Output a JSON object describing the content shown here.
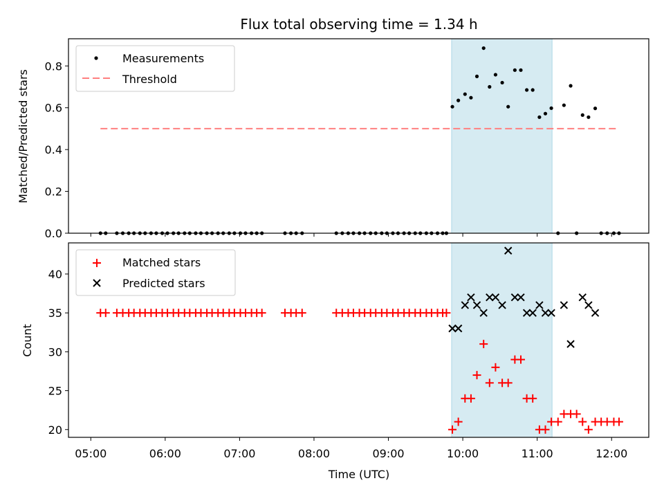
{
  "title": "Flux total observing time = 1.34 h",
  "xlabel": "Time (UTC)",
  "x_ticks": [
    "05:00",
    "06:00",
    "07:00",
    "08:00",
    "09:00",
    "10:00",
    "11:00",
    "12:00"
  ],
  "x_tick_values_h": [
    5,
    6,
    7,
    8,
    9,
    10,
    11,
    12
  ],
  "xlim_h": [
    4.7,
    12.5
  ],
  "colors": {
    "measurement": "#000000",
    "threshold": "#ff7f7f",
    "matched": "#ff0000",
    "predicted": "#000000",
    "span": "#add8e6"
  },
  "chart_data": [
    {
      "type": "scatter",
      "title": "Flux total observing time = 1.34 h",
      "xlabel": "",
      "ylabel": "Matched/Predicted stars",
      "ylim": [
        0.0,
        0.93
      ],
      "y_ticks": [
        0.0,
        0.2,
        0.4,
        0.6,
        0.8
      ],
      "y_tick_labels": [
        "0.0",
        "0.2",
        "0.4",
        "0.6",
        "0.8"
      ],
      "grid": false,
      "legend": "upper-left",
      "shaded_span_h": [
        9.85,
        11.2
      ],
      "threshold": {
        "name": "Threshold",
        "y": 0.5,
        "x_start_h": 5.13,
        "x_end_h": 12.07
      },
      "series": [
        {
          "name": "Measurements",
          "x_h": [
            5.13,
            5.2,
            5.35,
            5.43,
            5.51,
            5.58,
            5.66,
            5.73,
            5.81,
            5.88,
            5.96,
            6.03,
            6.11,
            6.18,
            6.26,
            6.33,
            6.41,
            6.48,
            6.56,
            6.63,
            6.71,
            6.78,
            6.86,
            6.93,
            7.01,
            7.08,
            7.16,
            7.23,
            7.3,
            7.61,
            7.69,
            7.76,
            7.84,
            8.3,
            8.38,
            8.46,
            8.53,
            8.61,
            8.68,
            8.76,
            8.83,
            8.91,
            8.98,
            9.06,
            9.13,
            9.21,
            9.28,
            9.36,
            9.43,
            9.51,
            9.58,
            9.66,
            9.73,
            9.78,
            9.86,
            9.94,
            10.03,
            10.11,
            10.19,
            10.28,
            10.36,
            10.44,
            10.53,
            10.61,
            10.7,
            10.78,
            10.86,
            10.94,
            11.03,
            11.11,
            11.19,
            11.28,
            11.36,
            11.45,
            11.53,
            11.61,
            11.69,
            11.78,
            11.86,
            11.94,
            12.03,
            12.1
          ],
          "y": [
            0,
            0,
            0,
            0,
            0,
            0,
            0,
            0,
            0,
            0,
            0,
            0,
            0,
            0,
            0,
            0,
            0,
            0,
            0,
            0,
            0,
            0,
            0,
            0,
            0,
            0,
            0,
            0,
            0,
            0,
            0,
            0,
            0,
            0,
            0,
            0,
            0,
            0,
            0,
            0,
            0,
            0,
            0,
            0,
            0,
            0,
            0,
            0,
            0,
            0,
            0,
            0,
            0,
            0,
            0.605,
            0.635,
            0.665,
            0.648,
            0.75,
            0.885,
            0.7,
            0.758,
            0.72,
            0.605,
            0.78,
            0.78,
            0.685,
            0.685,
            0.555,
            0.572,
            0.598,
            0.0,
            0.612,
            0.705,
            0.0,
            0.565,
            0.555,
            0.597,
            0.0,
            0.0,
            0.0,
            0.0
          ]
        }
      ]
    },
    {
      "type": "scatter",
      "xlabel": "Time (UTC)",
      "ylabel": "Count",
      "ylim": [
        19.0,
        44.0
      ],
      "y_ticks": [
        20,
        25,
        30,
        35,
        40
      ],
      "y_tick_labels": [
        "20",
        "25",
        "30",
        "35",
        "40"
      ],
      "grid": false,
      "legend": "upper-left",
      "shaded_span_h": [
        9.85,
        11.2
      ],
      "series": [
        {
          "name": "Matched stars",
          "x_h": [
            5.13,
            5.2,
            5.35,
            5.43,
            5.51,
            5.58,
            5.66,
            5.73,
            5.81,
            5.88,
            5.96,
            6.03,
            6.11,
            6.18,
            6.26,
            6.33,
            6.41,
            6.48,
            6.56,
            6.63,
            6.71,
            6.78,
            6.86,
            6.93,
            7.01,
            7.08,
            7.16,
            7.23,
            7.3,
            7.61,
            7.69,
            7.76,
            7.84,
            8.3,
            8.38,
            8.46,
            8.53,
            8.61,
            8.68,
            8.76,
            8.83,
            8.91,
            8.98,
            9.06,
            9.13,
            9.21,
            9.28,
            9.36,
            9.43,
            9.51,
            9.58,
            9.66,
            9.73,
            9.78,
            9.86,
            9.94,
            10.03,
            10.11,
            10.19,
            10.28,
            10.36,
            10.44,
            10.53,
            10.61,
            10.7,
            10.78,
            10.86,
            10.94,
            11.03,
            11.11,
            11.19,
            11.28,
            11.36,
            11.45,
            11.53,
            11.61,
            11.69,
            11.78,
            11.86,
            11.94,
            12.03,
            12.1
          ],
          "y": [
            35,
            35,
            35,
            35,
            35,
            35,
            35,
            35,
            35,
            35,
            35,
            35,
            35,
            35,
            35,
            35,
            35,
            35,
            35,
            35,
            35,
            35,
            35,
            35,
            35,
            35,
            35,
            35,
            35,
            35,
            35,
            35,
            35,
            35,
            35,
            35,
            35,
            35,
            35,
            35,
            35,
            35,
            35,
            35,
            35,
            35,
            35,
            35,
            35,
            35,
            35,
            35,
            35,
            35,
            20,
            21,
            24,
            24,
            27,
            31,
            26,
            28,
            26,
            26,
            29,
            29,
            24,
            24,
            20,
            20,
            21,
            21,
            22,
            22,
            22,
            21,
            20,
            21,
            21,
            21,
            21,
            21
          ]
        },
        {
          "name": "Predicted stars",
          "x_h": [
            9.86,
            9.94,
            10.03,
            10.11,
            10.19,
            10.28,
            10.36,
            10.44,
            10.53,
            10.61,
            10.7,
            10.78,
            10.86,
            10.94,
            11.03,
            11.11,
            11.19,
            11.36,
            11.45,
            11.61,
            11.69,
            11.78
          ],
          "y": [
            33,
            33,
            36,
            37,
            36,
            35,
            37,
            37,
            36,
            43,
            37,
            37,
            35,
            35,
            36,
            35,
            35,
            36,
            31,
            37,
            36,
            35
          ]
        }
      ]
    }
  ]
}
